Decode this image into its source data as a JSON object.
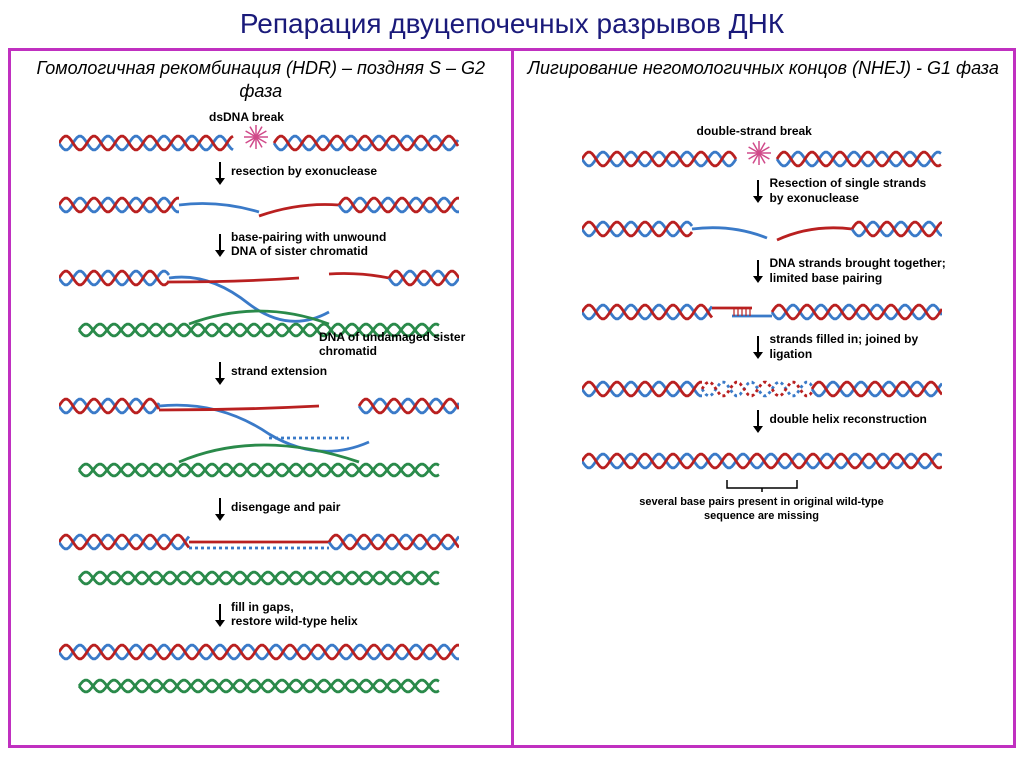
{
  "title": "Репарация двуцепочечных разрывов ДНК",
  "left": {
    "title": "Гомологичная рекомбинация (HDR) – поздняя S – G2 фаза",
    "labels": {
      "break": "dsDNA break",
      "resection": "resection by exonuclease",
      "basepair": "base-pairing with unwound DNA of sister chromatid",
      "sister": "DNA of undamaged sister chromatid",
      "extension": "strand extension",
      "disengage": "disengage and pair",
      "fill": "fill in gaps,\nrestore wild-type helix"
    }
  },
  "right": {
    "title": "Лигирование негомологичных концов (NHEJ) - G1 фаза",
    "labels": {
      "break": "double-strand break",
      "resection": "Resection of single strands by exonuclease",
      "brought": "DNA strands brought together; limited base pairing",
      "filled": "strands filled in; joined by ligation",
      "recon": "double helix reconstruction",
      "missing": "several base pairs present in original wild-type sequence are missing"
    }
  },
  "colors": {
    "red": "#b92020",
    "blue": "#3a7ac8",
    "green": "#2a8a4a",
    "burst": "#d04a8a",
    "frame": "#c030c0",
    "titleColor": "#1a1a7a"
  },
  "style": {
    "strokeWidth": 2.8,
    "helixPeriod": 28,
    "helixAmp": 7
  }
}
